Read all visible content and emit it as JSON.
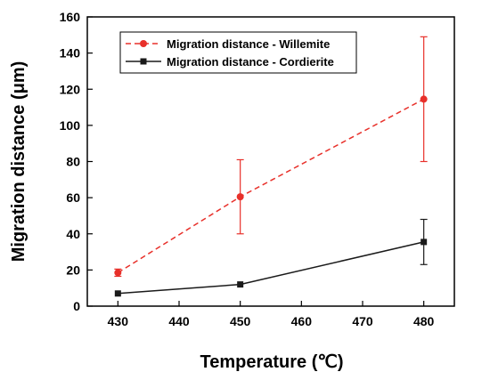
{
  "chart_data": {
    "type": "line",
    "xlabel": "Temperature (℃)",
    "ylabel": "Migration distance (μm)",
    "xlim": [
      425,
      485
    ],
    "ylim": [
      0,
      160
    ],
    "x_ticks": [
      430,
      440,
      450,
      460,
      470,
      480
    ],
    "y_ticks": [
      0,
      20,
      40,
      60,
      80,
      100,
      120,
      140,
      160
    ],
    "legend_position": "top-left",
    "grid": false,
    "series": [
      {
        "name": "Migration distance - Willemite",
        "color": "#e8302a",
        "line_style": "dashed",
        "marker": "circle",
        "x": [
          430,
          450,
          480
        ],
        "y": [
          18.5,
          60.5,
          114.5
        ],
        "error": [
          2,
          20.5,
          34.5
        ]
      },
      {
        "name": "Migration distance - Cordierite",
        "color": "#1a1a1a",
        "line_style": "solid",
        "marker": "square",
        "x": [
          430,
          450,
          480
        ],
        "y": [
          7,
          12,
          35.5
        ],
        "error": [
          0,
          0,
          12.5
        ]
      }
    ]
  }
}
